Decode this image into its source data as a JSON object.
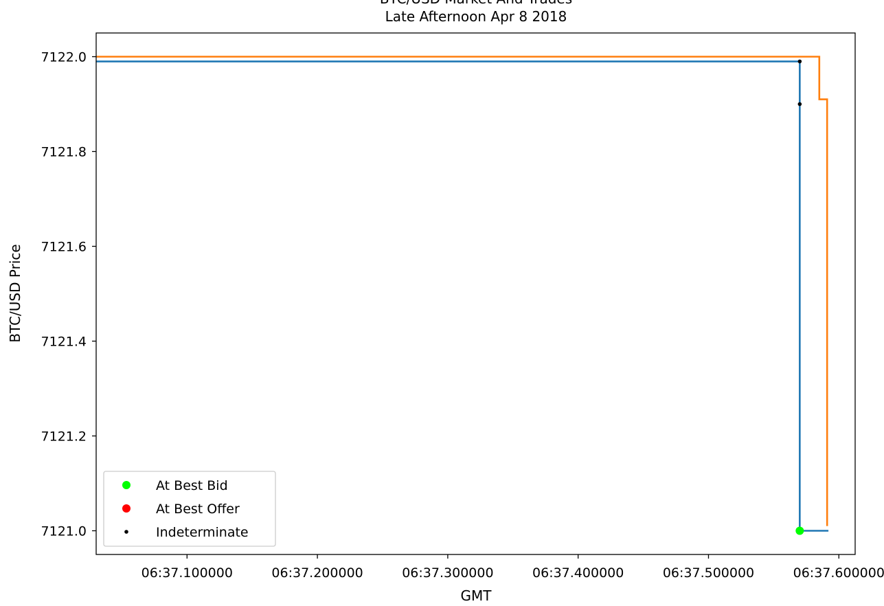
{
  "chart_data": {
    "type": "line",
    "title": "BTC/USD Market And Trades",
    "subtitle": "Late Afternoon Apr 8 2018",
    "xlabel": "GMT",
    "ylabel": "BTC/USD Price",
    "xlim": [
      37.0303,
      37.6125
    ],
    "ylim": [
      7120.95,
      7122.05
    ],
    "x_unit_note": "",
    "xticks": [
      {
        "v": 37.1,
        "label": "06:37.100000"
      },
      {
        "v": 37.2,
        "label": "06:37.200000"
      },
      {
        "v": 37.3,
        "label": "06:37.300000"
      },
      {
        "v": 37.4,
        "label": "06:37.400000"
      },
      {
        "v": 37.5,
        "label": "06:37.500000"
      },
      {
        "v": 37.6,
        "label": "06:37.600000"
      }
    ],
    "yticks": [
      {
        "v": 7121.0,
        "label": "7121.0"
      },
      {
        "v": 7121.2,
        "label": "7121.2"
      },
      {
        "v": 7121.4,
        "label": "7121.4"
      },
      {
        "v": 7121.6,
        "label": "7121.6"
      },
      {
        "v": 7121.8,
        "label": "7121.8"
      },
      {
        "v": 7122.0,
        "label": "7122.0"
      }
    ],
    "grid": false,
    "legend_position": "lower-left",
    "series": [
      {
        "color": "#1f77b4",
        "step": true,
        "points": [
          [
            37.03,
            7121.99
          ],
          [
            37.57,
            7121.99
          ],
          [
            37.57,
            7121.0
          ],
          [
            37.592,
            7121.0
          ]
        ]
      },
      {
        "color": "#ff7f0e",
        "step": true,
        "points": [
          [
            37.03,
            7122.0
          ],
          [
            37.585,
            7122.0
          ],
          [
            37.585,
            7121.91
          ],
          [
            37.591,
            7121.91
          ],
          [
            37.591,
            7121.01
          ]
        ]
      }
    ],
    "markers": [
      {
        "name": "At Best Bid",
        "color": "#00ff00",
        "size": "large",
        "points": [
          [
            37.57,
            7121.0
          ]
        ]
      },
      {
        "name": "At Best Offer",
        "color": "#ff0000",
        "size": "large",
        "points": []
      },
      {
        "name": "Indeterminate",
        "color": "#000000",
        "size": "small",
        "points": [
          [
            37.57,
            7121.99
          ],
          [
            37.57,
            7121.9
          ]
        ]
      }
    ]
  }
}
